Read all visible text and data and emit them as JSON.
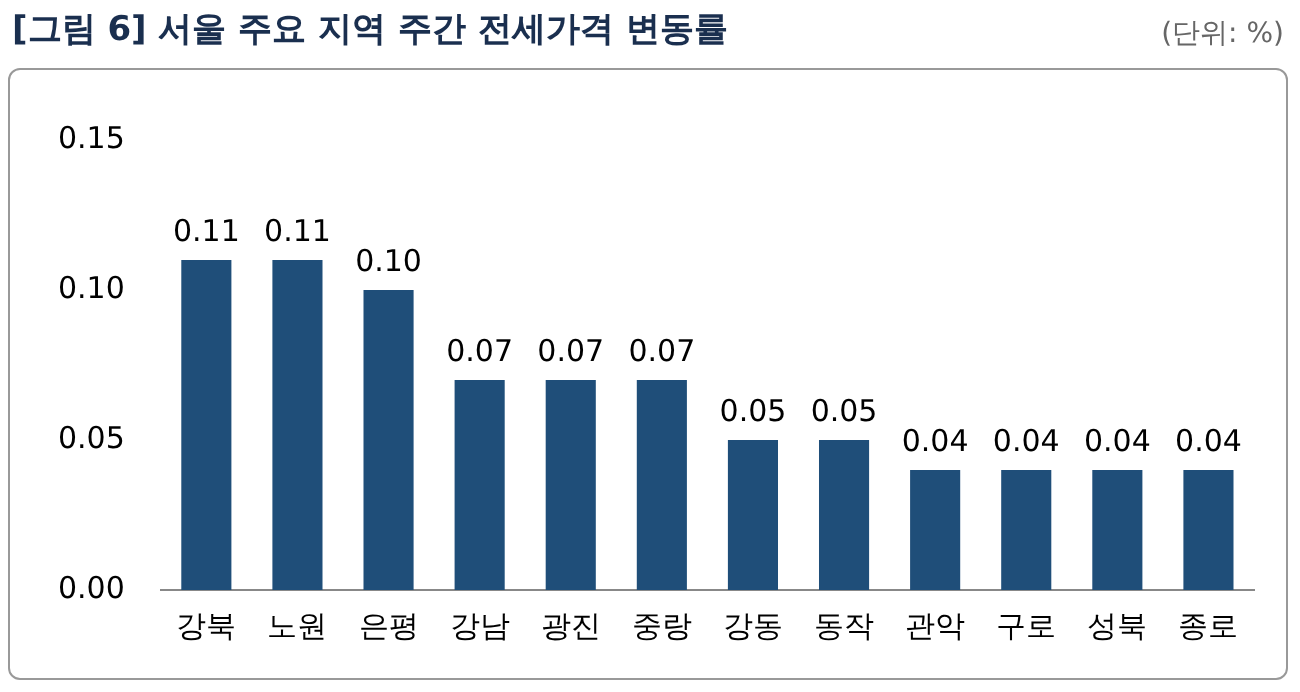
{
  "chart_data": {
    "type": "bar",
    "title": "[그림 6] 서울 주요 지역 주간 전세가격 변동률",
    "annotations": [
      "(단위: %)"
    ],
    "categories": [
      "강북",
      "노원",
      "은평",
      "강남",
      "광진",
      "중랑",
      "강동",
      "동작",
      "관악",
      "구로",
      "성북",
      "종로"
    ],
    "values": [
      0.11,
      0.11,
      0.1,
      0.07,
      0.07,
      0.07,
      0.05,
      0.05,
      0.04,
      0.04,
      0.04,
      0.04
    ],
    "value_labels": [
      "0.11",
      "0.11",
      "0.10",
      "0.07",
      "0.07",
      "0.07",
      "0.05",
      "0.05",
      "0.04",
      "0.04",
      "0.04",
      "0.04"
    ],
    "color": "#1f4e79",
    "ylim": [
      0,
      0.15
    ],
    "yticks": [
      {
        "value": 0,
        "label": "0.00"
      },
      {
        "value": 0.05,
        "label": "0.05"
      },
      {
        "value": 0.1,
        "label": "0.10"
      },
      {
        "value": 0.15,
        "label": "0.15"
      }
    ],
    "legend": false
  }
}
